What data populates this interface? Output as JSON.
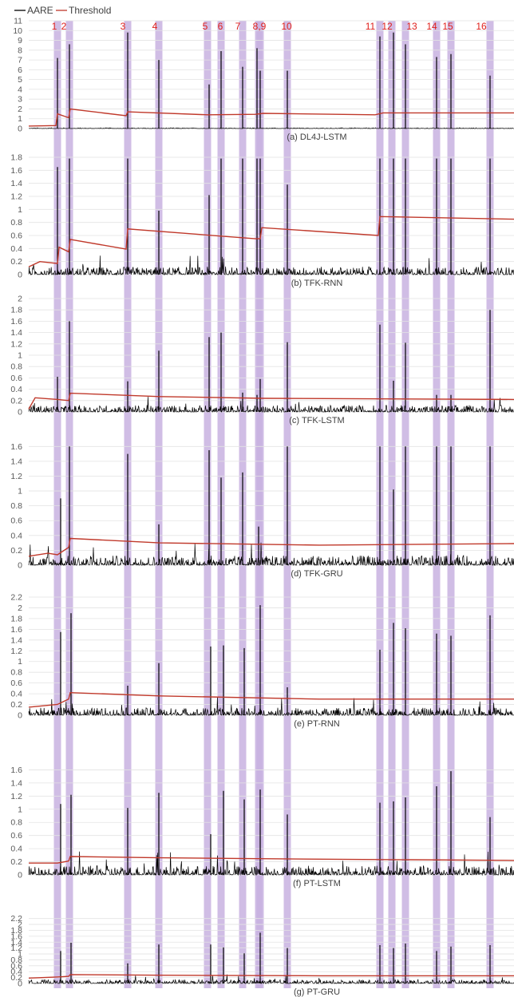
{
  "legend": {
    "items": [
      {
        "name": "AARE",
        "color": "#000000"
      },
      {
        "name": "Threshold",
        "color": "#c0392b"
      }
    ]
  },
  "colors": {
    "aare": "#000000",
    "threshold": "#c0392b",
    "anomaly_band": "#c8b1e0",
    "anomaly_label": "#e0201b",
    "grid": "#e3e3e3"
  },
  "anomalies": [
    {
      "id": "1",
      "label": "1",
      "x_pos": 72
    },
    {
      "id": "2",
      "label": "2",
      "x_pos": 87
    },
    {
      "id": "3",
      "label": "3",
      "x_pos": 160
    },
    {
      "id": "4",
      "label": "4",
      "x_pos": 199
    },
    {
      "id": "5",
      "label": "5",
      "x_pos": 260
    },
    {
      "id": "6",
      "label": "6",
      "x_pos": 277
    },
    {
      "id": "7",
      "label": "7",
      "x_pos": 304
    },
    {
      "id": "8",
      "label": "8",
      "x_pos": 324
    },
    {
      "id": "9",
      "label": "9",
      "x_pos": 326
    },
    {
      "id": "10",
      "label": "10",
      "x_pos": 360
    },
    {
      "id": "11",
      "label": "11",
      "x_pos": 476
    },
    {
      "id": "12",
      "label": "12",
      "x_pos": 491
    },
    {
      "id": "13",
      "label": "13",
      "x_pos": 508
    },
    {
      "id": "14",
      "label": "14",
      "x_pos": 547
    },
    {
      "id": "15",
      "label": "15",
      "x_pos": 565
    },
    {
      "id": "16",
      "label": "16",
      "x_pos": 614
    }
  ],
  "anomaly_labels": [
    {
      "text": "1",
      "x_pos": 68
    },
    {
      "text": "2",
      "x_pos": 80
    },
    {
      "text": "3",
      "x_pos": 154
    },
    {
      "text": "4",
      "x_pos": 194
    },
    {
      "text": "5",
      "x_pos": 257
    },
    {
      "text": "6",
      "x_pos": 276
    },
    {
      "text": "7",
      "x_pos": 298
    },
    {
      "text": "8,9",
      "x_pos": 325
    },
    {
      "text": "10",
      "x_pos": 359
    },
    {
      "text": "11",
      "x_pos": 464
    },
    {
      "text": "12",
      "x_pos": 485
    },
    {
      "text": "13",
      "x_pos": 516
    },
    {
      "text": "14",
      "x_pos": 541
    },
    {
      "text": "15",
      "x_pos": 561
    },
    {
      "text": "16",
      "x_pos": 603
    }
  ],
  "chart_data": [
    {
      "type": "line",
      "caption": "(a) DL4J-LSTM",
      "ylim": [
        0,
        11
      ],
      "yticks": [
        "0",
        "1",
        "2",
        "3",
        "4",
        "5",
        "6",
        "7",
        "8",
        "9",
        "10",
        "11"
      ],
      "noise": 0.08,
      "series": [
        {
          "name": "AARE",
          "peaks": [
            [
              72,
              7.2
            ],
            [
              87,
              8.6
            ],
            [
              160,
              9.8
            ],
            [
              199,
              7.0
            ],
            [
              262,
              4.5
            ],
            [
              277,
              7.9
            ],
            [
              304,
              6.3
            ],
            [
              322,
              8.2
            ],
            [
              326,
              5.9
            ],
            [
              360,
              5.9
            ],
            [
              476,
              9.4
            ],
            [
              493,
              9.8
            ],
            [
              508,
              8.6
            ],
            [
              547,
              7.3
            ],
            [
              565,
              7.6
            ],
            [
              614,
              5.4
            ]
          ]
        },
        {
          "name": "Threshold",
          "points": [
            [
              36,
              0.25
            ],
            [
              70,
              0.3
            ],
            [
              72,
              1.5
            ],
            [
              86,
              1.1
            ],
            [
              88,
              2.0
            ],
            [
              158,
              1.3
            ],
            [
              160,
              1.7
            ],
            [
              260,
              1.4
            ],
            [
              320,
              1.45
            ],
            [
              330,
              1.55
            ],
            [
              470,
              1.4
            ],
            [
              480,
              1.6
            ],
            [
              644,
              1.6
            ]
          ]
        }
      ]
    },
    {
      "type": "line",
      "caption": "(b) TFK-RNN",
      "ylim": [
        0,
        1.8
      ],
      "yticks": [
        "0",
        "0.2",
        "0.4",
        "0.6",
        "0.8",
        "1",
        "1.2",
        "1.4",
        "1.6",
        "1.8"
      ],
      "noise": 0.12,
      "series": [
        {
          "name": "AARE",
          "peaks": [
            [
              72,
              1.65
            ],
            [
              87,
              1.78
            ],
            [
              160,
              1.78
            ],
            [
              199,
              0.98
            ],
            [
              262,
              1.22
            ],
            [
              277,
              1.78
            ],
            [
              304,
              1.78
            ],
            [
              322,
              1.78
            ],
            [
              326,
              1.78
            ],
            [
              360,
              1.38
            ],
            [
              476,
              1.78
            ],
            [
              493,
              1.78
            ],
            [
              508,
              1.78
            ],
            [
              547,
              1.78
            ],
            [
              565,
              1.78
            ],
            [
              614,
              1.78
            ]
          ]
        },
        {
          "name": "Threshold",
          "points": [
            [
              36,
              0.12
            ],
            [
              50,
              0.2
            ],
            [
              72,
              0.17
            ],
            [
              74,
              0.42
            ],
            [
              86,
              0.35
            ],
            [
              88,
              0.54
            ],
            [
              158,
              0.39
            ],
            [
              160,
              0.7
            ],
            [
              320,
              0.55
            ],
            [
              326,
              0.55
            ],
            [
              328,
              0.72
            ],
            [
              474,
              0.6
            ],
            [
              476,
              0.89
            ],
            [
              644,
              0.85
            ]
          ]
        }
      ]
    },
    {
      "type": "line",
      "caption": "(c) TFK-LSTM",
      "ylim": [
        0,
        2
      ],
      "yticks": [
        "0",
        "0.2",
        "0.4",
        "0.6",
        "0.8",
        "1",
        "1.2",
        "1.4",
        "1.6",
        "1.8",
        "2"
      ],
      "noise": 0.12,
      "series": [
        {
          "name": "AARE",
          "peaks": [
            [
              72,
              0.62
            ],
            [
              87,
              1.6
            ],
            [
              160,
              0.54
            ],
            [
              199,
              1.08
            ],
            [
              262,
              1.32
            ],
            [
              277,
              1.4
            ],
            [
              304,
              0.34
            ],
            [
              322,
              0.3
            ],
            [
              326,
              0.58
            ],
            [
              360,
              1.23
            ],
            [
              476,
              1.54
            ],
            [
              493,
              0.55
            ],
            [
              508,
              1.22
            ],
            [
              547,
              0.3
            ],
            [
              565,
              0.3
            ],
            [
              614,
              1.8
            ]
          ]
        },
        {
          "name": "Threshold",
          "points": [
            [
              36,
              0.05
            ],
            [
              44,
              0.25
            ],
            [
              72,
              0.22
            ],
            [
              86,
              0.2
            ],
            [
              88,
              0.33
            ],
            [
              200,
              0.27
            ],
            [
              330,
              0.24
            ],
            [
              644,
              0.22
            ]
          ]
        }
      ]
    },
    {
      "type": "line",
      "caption": "(d) TFK-GRU",
      "ylim": [
        0,
        1.7
      ],
      "yticks": [
        "0",
        "0.2",
        "0.4",
        "0.6",
        "0.8",
        "1",
        "1.2",
        "1.4",
        "1.6"
      ],
      "noise": 0.13,
      "series": [
        {
          "name": "AARE",
          "peaks": [
            [
              76,
              0.9
            ],
            [
              87,
              1.6
            ],
            [
              160,
              1.5
            ],
            [
              199,
              0.55
            ],
            [
              262,
              1.55
            ],
            [
              277,
              1.18
            ],
            [
              304,
              1.25
            ],
            [
              324,
              0.52
            ],
            [
              360,
              1.6
            ],
            [
              476,
              1.6
            ],
            [
              493,
              1.02
            ],
            [
              508,
              1.6
            ],
            [
              547,
              1.6
            ],
            [
              565,
              1.6
            ],
            [
              614,
              1.6
            ]
          ]
        },
        {
          "name": "Threshold",
          "points": [
            [
              36,
              0.12
            ],
            [
              60,
              0.16
            ],
            [
              72,
              0.14
            ],
            [
              86,
              0.24
            ],
            [
              88,
              0.36
            ],
            [
              200,
              0.3
            ],
            [
              400,
              0.27
            ],
            [
              644,
              0.29
            ]
          ]
        }
      ]
    },
    {
      "type": "line",
      "caption": "(e) PT-RNN",
      "ylim": [
        0,
        2.2
      ],
      "yticks": [
        "0",
        "0.2",
        "0.4",
        "0.6",
        "0.8",
        "1",
        "1.2",
        "1.4",
        "1.6",
        "1.8",
        "2",
        "2.2"
      ],
      "noise": 0.14,
      "series": [
        {
          "name": "AARE",
          "peaks": [
            [
              76,
              1.55
            ],
            [
              89,
              1.9
            ],
            [
              160,
              0.55
            ],
            [
              199,
              0.97
            ],
            [
              264,
              1.28
            ],
            [
              280,
              1.3
            ],
            [
              306,
              1.25
            ],
            [
              326,
              2.05
            ],
            [
              360,
              0.52
            ],
            [
              476,
              1.22
            ],
            [
              493,
              1.72
            ],
            [
              508,
              1.62
            ],
            [
              547,
              1.52
            ],
            [
              565,
              1.48
            ],
            [
              614,
              1.86
            ]
          ]
        },
        {
          "name": "Threshold",
          "points": [
            [
              36,
              0.15
            ],
            [
              72,
              0.2
            ],
            [
              86,
              0.3
            ],
            [
              88,
              0.42
            ],
            [
              200,
              0.36
            ],
            [
              400,
              0.3
            ],
            [
              644,
              0.3
            ]
          ]
        }
      ]
    },
    {
      "type": "line",
      "caption": "(f) PT-LSTM",
      "ylim": [
        0,
        1.8
      ],
      "yticks": [
        "0",
        "0.2",
        "0.4",
        "0.6",
        "0.8",
        "1",
        "1.2",
        "1.4",
        "1.6"
      ],
      "noise": 0.14,
      "series": [
        {
          "name": "AARE",
          "peaks": [
            [
              76,
              1.08
            ],
            [
              89,
              1.22
            ],
            [
              160,
              1.02
            ],
            [
              199,
              1.25
            ],
            [
              264,
              0.62
            ],
            [
              280,
              1.28
            ],
            [
              306,
              1.15
            ],
            [
              326,
              1.3
            ],
            [
              360,
              0.92
            ],
            [
              476,
              1.1
            ],
            [
              493,
              1.12
            ],
            [
              508,
              1.18
            ],
            [
              547,
              1.35
            ],
            [
              565,
              1.58
            ],
            [
              614,
              0.88
            ]
          ]
        },
        {
          "name": "Threshold",
          "points": [
            [
              36,
              0.18
            ],
            [
              72,
              0.18
            ],
            [
              86,
              0.21
            ],
            [
              88,
              0.28
            ],
            [
              200,
              0.26
            ],
            [
              400,
              0.24
            ],
            [
              644,
              0.22
            ]
          ]
        }
      ]
    },
    {
      "type": "line",
      "caption": "(g) PT-GRU",
      "ylim": [
        0,
        2.3
      ],
      "yticks": [
        "0",
        "0.2",
        "0.4",
        "0.6",
        "0.8",
        "1",
        "1.2",
        "1.4",
        "1.6",
        "1.8",
        "2",
        "2.2"
      ],
      "noise": 0.13,
      "series": [
        {
          "name": "AARE",
          "peaks": [
            [
              76,
              1.1
            ],
            [
              89,
              1.38
            ],
            [
              160,
              0.68
            ],
            [
              199,
              1.32
            ],
            [
              264,
              1.32
            ],
            [
              280,
              1.22
            ],
            [
              306,
              1.02
            ],
            [
              326,
              1.72
            ],
            [
              360,
              1.2
            ],
            [
              476,
              1.3
            ],
            [
              493,
              1.2
            ],
            [
              508,
              1.35
            ],
            [
              547,
              1.1
            ],
            [
              565,
              1.25
            ],
            [
              614,
              1.3
            ]
          ]
        },
        {
          "name": "Threshold",
          "points": [
            [
              36,
              0.18
            ],
            [
              72,
              0.22
            ],
            [
              86,
              0.24
            ],
            [
              88,
              0.3
            ],
            [
              200,
              0.28
            ],
            [
              400,
              0.26
            ],
            [
              644,
              0.26
            ]
          ]
        }
      ]
    }
  ]
}
